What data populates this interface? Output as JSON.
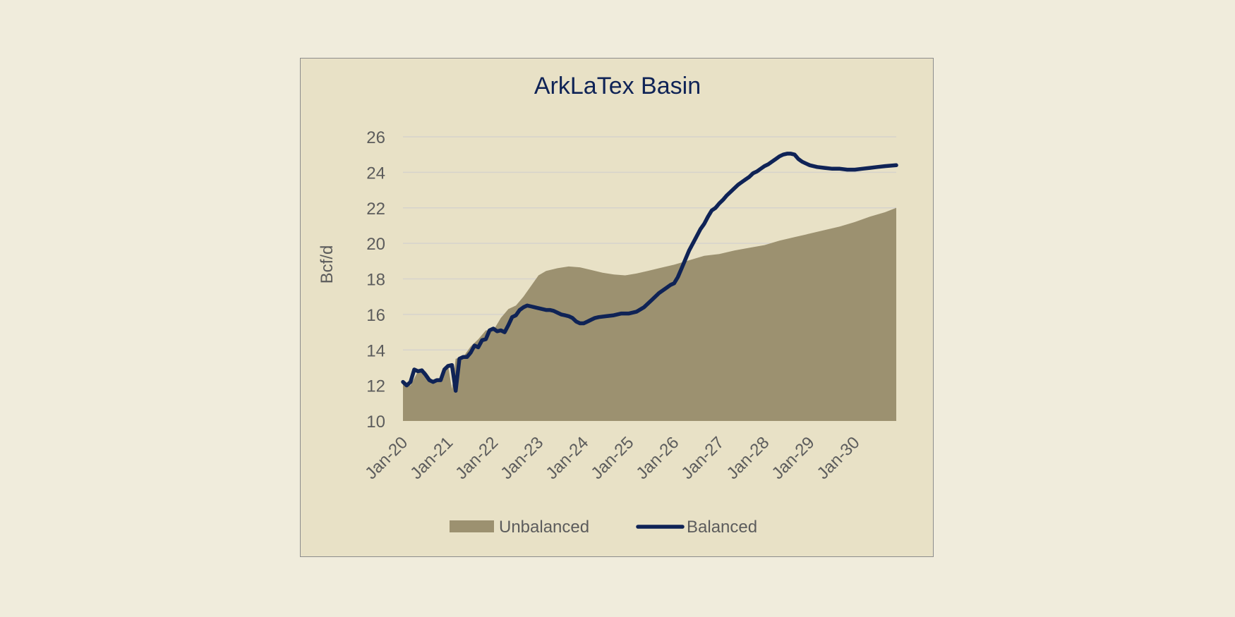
{
  "chart_data": {
    "type": "area",
    "title": "ArkLaTex Basin",
    "xlabel": "",
    "ylabel": "Bcf/d",
    "ylim": [
      10,
      26
    ],
    "yticks": [
      10,
      12,
      14,
      16,
      18,
      20,
      22,
      24,
      26
    ],
    "xticks": [
      "Jan-20",
      "Jan-21",
      "Jan-22",
      "Jan-23",
      "Jan-24",
      "Jan-25",
      "Jan-26",
      "Jan-27",
      "Jan-28",
      "Jan-29",
      "Jan-30"
    ],
    "x_range": [
      "Jan-20",
      "Dec-30"
    ],
    "grid": true,
    "legend_position": "bottom",
    "colors": {
      "unbalanced": "#9c9170",
      "balanced": "#0f2356",
      "grid": "#d6d3cc",
      "background": "#e8e1c6"
    },
    "series": [
      {
        "name": "Unbalanced",
        "type": "area",
        "points": [
          [
            "Jan-20",
            12.2
          ],
          [
            "Mar-20",
            12.0
          ],
          [
            "May-20",
            12.8
          ],
          [
            "Jul-20",
            12.8
          ],
          [
            "Sep-20",
            12.2
          ],
          [
            "Nov-20",
            12.3
          ],
          [
            "Dec-20",
            13.0
          ],
          [
            "Jan-21",
            13.1
          ],
          [
            "Feb-21",
            11.8
          ],
          [
            "Mar-21",
            13.5
          ],
          [
            "May-21",
            13.6
          ],
          [
            "Jul-21",
            14.2
          ],
          [
            "Sep-21",
            14.6
          ],
          [
            "Nov-21",
            15.1
          ],
          [
            "Jan-22",
            15.1
          ],
          [
            "Mar-22",
            15.8
          ],
          [
            "May-22",
            16.3
          ],
          [
            "Jul-22",
            16.5
          ],
          [
            "Sep-22",
            17.0
          ],
          [
            "Nov-22",
            17.6
          ],
          [
            "Jan-23",
            18.2
          ],
          [
            "Mar-23",
            18.45
          ],
          [
            "Jun-23",
            18.6
          ],
          [
            "Sep-23",
            18.7
          ],
          [
            "Dec-23",
            18.65
          ],
          [
            "Mar-24",
            18.5
          ],
          [
            "Jun-24",
            18.35
          ],
          [
            "Sep-24",
            18.25
          ],
          [
            "Dec-24",
            18.2
          ],
          [
            "Mar-25",
            18.3
          ],
          [
            "Jun-25",
            18.45
          ],
          [
            "Sep-25",
            18.6
          ],
          [
            "Jan-26",
            18.8
          ],
          [
            "May-26",
            19.05
          ],
          [
            "Sep-26",
            19.3
          ],
          [
            "Jan-27",
            19.4
          ],
          [
            "May-27",
            19.6
          ],
          [
            "Sep-27",
            19.75
          ],
          [
            "Jan-28",
            19.9
          ],
          [
            "May-28",
            20.15
          ],
          [
            "Sep-28",
            20.35
          ],
          [
            "Jan-29",
            20.55
          ],
          [
            "May-29",
            20.75
          ],
          [
            "Sep-29",
            20.95
          ],
          [
            "Jan-30",
            21.2
          ],
          [
            "May-30",
            21.5
          ],
          [
            "Sep-30",
            21.75
          ],
          [
            "Dec-30",
            22.0
          ]
        ]
      },
      {
        "name": "Balanced",
        "type": "line",
        "points": [
          [
            "Jan-20",
            12.2
          ],
          [
            "Feb-20",
            12.0
          ],
          [
            "Mar-20",
            12.2
          ],
          [
            "Apr-20",
            12.9
          ],
          [
            "May-20",
            12.8
          ],
          [
            "Jun-20",
            12.85
          ],
          [
            "Jul-20",
            12.6
          ],
          [
            "Aug-20",
            12.3
          ],
          [
            "Sep-20",
            12.2
          ],
          [
            "Oct-20",
            12.3
          ],
          [
            "Nov-20",
            12.3
          ],
          [
            "Dec-20",
            12.9
          ],
          [
            "Jan-21",
            13.1
          ],
          [
            "Feb-21",
            13.15
          ],
          [
            "Mar-21",
            11.7
          ],
          [
            "Apr-21",
            13.5
          ],
          [
            "May-21",
            13.6
          ],
          [
            "Jun-21",
            13.6
          ],
          [
            "Jul-21",
            13.85
          ],
          [
            "Aug-21",
            14.25
          ],
          [
            "Sep-21",
            14.15
          ],
          [
            "Oct-21",
            14.55
          ],
          [
            "Nov-21",
            14.6
          ],
          [
            "Dec-21",
            15.1
          ],
          [
            "Jan-22",
            15.2
          ],
          [
            "Feb-22",
            15.05
          ],
          [
            "Mar-22",
            15.1
          ],
          [
            "Apr-22",
            15.0
          ],
          [
            "May-22",
            15.4
          ],
          [
            "Jun-22",
            15.85
          ],
          [
            "Jul-22",
            15.95
          ],
          [
            "Aug-22",
            16.25
          ],
          [
            "Sep-22",
            16.4
          ],
          [
            "Oct-22",
            16.5
          ],
          [
            "Nov-22",
            16.45
          ],
          [
            "Dec-22",
            16.4
          ],
          [
            "Jan-23",
            16.35
          ],
          [
            "Feb-23",
            16.3
          ],
          [
            "Mar-23",
            16.25
          ],
          [
            "Apr-23",
            16.25
          ],
          [
            "May-23",
            16.2
          ],
          [
            "Jun-23",
            16.1
          ],
          [
            "Jul-23",
            16.0
          ],
          [
            "Aug-23",
            15.95
          ],
          [
            "Sep-23",
            15.9
          ],
          [
            "Oct-23",
            15.8
          ],
          [
            "Nov-23",
            15.6
          ],
          [
            "Dec-23",
            15.5
          ],
          [
            "Jan-24",
            15.5
          ],
          [
            "Feb-24",
            15.6
          ],
          [
            "Mar-24",
            15.7
          ],
          [
            "Apr-24",
            15.8
          ],
          [
            "May-24",
            15.85
          ],
          [
            "Jul-24",
            15.9
          ],
          [
            "Sep-24",
            15.95
          ],
          [
            "Nov-24",
            16.05
          ],
          [
            "Jan-25",
            16.05
          ],
          [
            "Mar-25",
            16.15
          ],
          [
            "May-25",
            16.4
          ],
          [
            "Jul-25",
            16.8
          ],
          [
            "Sep-25",
            17.2
          ],
          [
            "Nov-25",
            17.5
          ],
          [
            "Dec-25",
            17.65
          ],
          [
            "Jan-26",
            17.75
          ],
          [
            "Feb-26",
            18.1
          ],
          [
            "Mar-26",
            18.6
          ],
          [
            "Apr-26",
            19.1
          ],
          [
            "May-26",
            19.6
          ],
          [
            "Jun-26",
            20.0
          ],
          [
            "Jul-26",
            20.4
          ],
          [
            "Aug-26",
            20.8
          ],
          [
            "Sep-26",
            21.1
          ],
          [
            "Oct-26",
            21.5
          ],
          [
            "Nov-26",
            21.85
          ],
          [
            "Dec-26",
            22.0
          ],
          [
            "Jan-27",
            22.25
          ],
          [
            "Feb-27",
            22.45
          ],
          [
            "Mar-27",
            22.7
          ],
          [
            "Apr-27",
            22.9
          ],
          [
            "May-27",
            23.1
          ],
          [
            "Jun-27",
            23.3
          ],
          [
            "Jul-27",
            23.45
          ],
          [
            "Aug-27",
            23.6
          ],
          [
            "Sep-27",
            23.75
          ],
          [
            "Oct-27",
            23.95
          ],
          [
            "Nov-27",
            24.05
          ],
          [
            "Dec-27",
            24.2
          ],
          [
            "Jan-28",
            24.35
          ],
          [
            "Feb-28",
            24.45
          ],
          [
            "Mar-28",
            24.6
          ],
          [
            "Apr-28",
            24.75
          ],
          [
            "May-28",
            24.9
          ],
          [
            "Jun-28",
            25.0
          ],
          [
            "Jul-28",
            25.05
          ],
          [
            "Aug-28",
            25.05
          ],
          [
            "Sep-28",
            25.0
          ],
          [
            "Oct-28",
            24.75
          ],
          [
            "Nov-28",
            24.6
          ],
          [
            "Dec-28",
            24.5
          ],
          [
            "Jan-29",
            24.4
          ],
          [
            "Mar-29",
            24.3
          ],
          [
            "May-29",
            24.25
          ],
          [
            "Jul-29",
            24.2
          ],
          [
            "Sep-29",
            24.2
          ],
          [
            "Nov-29",
            24.15
          ],
          [
            "Jan-30",
            24.15
          ],
          [
            "Mar-30",
            24.2
          ],
          [
            "May-30",
            24.25
          ],
          [
            "Jul-30",
            24.3
          ],
          [
            "Sep-30",
            24.35
          ],
          [
            "Dec-30",
            24.4
          ]
        ]
      }
    ]
  }
}
